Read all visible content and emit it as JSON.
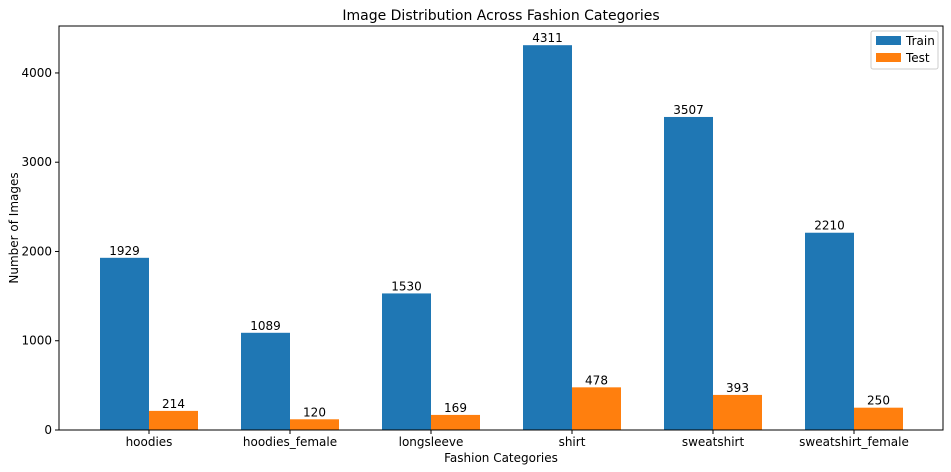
{
  "chart_data": {
    "type": "bar",
    "title": "Image Distribution Across Fashion Categories",
    "xlabel": "Fashion Categories",
    "ylabel": "Number of Images",
    "categories": [
      "hoodies",
      "hoodies_female",
      "longsleeve",
      "shirt",
      "sweatshirt",
      "sweatshirt_female"
    ],
    "series": [
      {
        "name": "Train",
        "values": [
          1929,
          1089,
          1530,
          4311,
          3507,
          2210
        ],
        "color": "#1f77b4"
      },
      {
        "name": "Test",
        "values": [
          214,
          120,
          169,
          478,
          393,
          250
        ],
        "color": "#ff7f0e"
      }
    ],
    "ylim": [
      0,
      4526
    ],
    "yticks": [
      0,
      1000,
      2000,
      3000,
      4000
    ],
    "grid": false,
    "legend": "top-right"
  }
}
